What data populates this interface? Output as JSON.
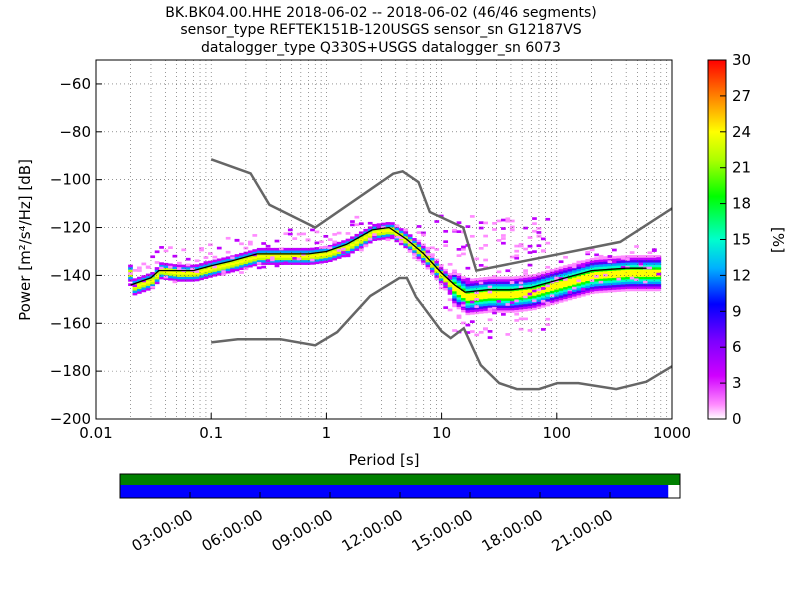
{
  "title": {
    "line1": "BK.BK04.00.HHE   2018-06-02 -- 2018-06-02  (46/46 segments)",
    "line2": "sensor_type REFTEK151B-120USGS sensor_sn G12187VS",
    "line3": "datalogger_type Q330S+USGS datalogger_sn 6073"
  },
  "chart_data": [
    {
      "type": "heatmap",
      "title": "BK.BK04.00.HHE   2018-06-02 -- 2018-06-02  (46/46 segments)",
      "xlabel": "Period [s]",
      "ylabel": "Power [m²/s⁴/Hz] [dB]",
      "xscale": "log",
      "xlim": [
        0.01,
        1000
      ],
      "ylim": [
        -200,
        -50
      ],
      "x_ticks": [
        "0.01",
        "0.1",
        "1",
        "10",
        "100",
        "1000"
      ],
      "x_tick_values": [
        0.01,
        0.1,
        1,
        10,
        100,
        1000
      ],
      "y_ticks": [
        "−60",
        "−80",
        "−100",
        "−120",
        "−140",
        "−160",
        "−180",
        "−200"
      ],
      "y_tick_values": [
        -60,
        -80,
        -100,
        -120,
        -140,
        -160,
        -180,
        -200
      ],
      "grid": true,
      "colorbar": {
        "label": "[%]",
        "range": [
          0,
          30
        ],
        "ticks": [
          "0",
          "3",
          "6",
          "9",
          "12",
          "15",
          "18",
          "21",
          "24",
          "27",
          "30"
        ],
        "tick_values": [
          0,
          3,
          6,
          9,
          12,
          15,
          18,
          21,
          24,
          27,
          30
        ]
      },
      "new_high_noise_model": [
        [
          0.1,
          -91.5
        ],
        [
          0.22,
          -97.4
        ],
        [
          0.32,
          -110.5
        ],
        [
          0.8,
          -120
        ],
        [
          3.8,
          -97.5
        ],
        [
          4.6,
          -96.5
        ],
        [
          6.3,
          -101
        ],
        [
          7.9,
          -113.5
        ],
        [
          15.4,
          -120
        ],
        [
          20,
          -138
        ],
        [
          354.8,
          -126
        ],
        [
          1000,
          -112
        ]
      ],
      "new_low_noise_model": [
        [
          0.1,
          -168
        ],
        [
          0.17,
          -166.7
        ],
        [
          0.4,
          -166.7
        ],
        [
          0.8,
          -169.2
        ],
        [
          1.24,
          -163.7
        ],
        [
          2.4,
          -148.6
        ],
        [
          4.3,
          -141.1
        ],
        [
          5,
          -141.1
        ],
        [
          6,
          -149
        ],
        [
          10,
          -163.3
        ],
        [
          12,
          -166.2
        ],
        [
          15.6,
          -162.1
        ],
        [
          21.9,
          -177.5
        ],
        [
          31.6,
          -185
        ],
        [
          45,
          -187.5
        ],
        [
          70,
          -187.5
        ],
        [
          101,
          -185
        ],
        [
          154,
          -185
        ],
        [
          328,
          -187.5
        ],
        [
          600,
          -184.4
        ],
        [
          1000,
          -178
        ]
      ],
      "mode_curve": [
        [
          0.02,
          -145
        ],
        [
          0.03,
          -142
        ],
        [
          0.035,
          -138
        ],
        [
          0.05,
          -139
        ],
        [
          0.07,
          -139
        ],
        [
          0.1,
          -137
        ],
        [
          0.15,
          -135
        ],
        [
          0.25,
          -132
        ],
        [
          0.4,
          -132
        ],
        [
          0.7,
          -132
        ],
        [
          1,
          -131
        ],
        [
          1.5,
          -128
        ],
        [
          2.5,
          -122
        ],
        [
          3.5,
          -121
        ],
        [
          5,
          -126
        ],
        [
          7,
          -132
        ],
        [
          10,
          -141
        ],
        [
          13,
          -146
        ],
        [
          16,
          -149
        ],
        [
          25,
          -148
        ],
        [
          40,
          -148
        ],
        [
          60,
          -147
        ],
        [
          100,
          -144
        ],
        [
          200,
          -140
        ],
        [
          400,
          -139
        ],
        [
          1000,
          -139
        ]
      ],
      "mean_curve": [
        [
          0.02,
          -144
        ],
        [
          0.03,
          -141
        ],
        [
          0.035,
          -138
        ],
        [
          0.05,
          -138
        ],
        [
          0.07,
          -138
        ],
        [
          0.1,
          -136
        ],
        [
          0.15,
          -134
        ],
        [
          0.25,
          -131
        ],
        [
          0.4,
          -131
        ],
        [
          0.7,
          -131
        ],
        [
          1,
          -130
        ],
        [
          1.5,
          -127
        ],
        [
          2.5,
          -121
        ],
        [
          3.5,
          -120
        ],
        [
          5,
          -125
        ],
        [
          7,
          -131
        ],
        [
          10,
          -139
        ],
        [
          13,
          -144
        ],
        [
          16,
          -147
        ],
        [
          25,
          -146
        ],
        [
          40,
          -146
        ],
        [
          60,
          -145
        ],
        [
          100,
          -142
        ],
        [
          200,
          -138
        ],
        [
          400,
          -137
        ],
        [
          600,
          -137
        ]
      ]
    },
    {
      "type": "timeline",
      "x_ticks": [
        "03:00:00",
        "06:00:00",
        "09:00:00",
        "12:00:00",
        "15:00:00",
        "18:00:00",
        "21:00:00"
      ],
      "x_tick_hours": [
        3,
        6,
        9,
        12,
        15,
        18,
        21
      ],
      "xlim_hours": [
        0,
        24
      ],
      "data_available_fraction": 1.0,
      "psd_coverage_fraction": 0.979,
      "colors": {
        "data_bar": "#008000",
        "psd_bar": "#0000ff"
      }
    }
  ],
  "colors": {
    "noise_model": "#666666",
    "mean": "#000000",
    "grid": "#444444"
  }
}
